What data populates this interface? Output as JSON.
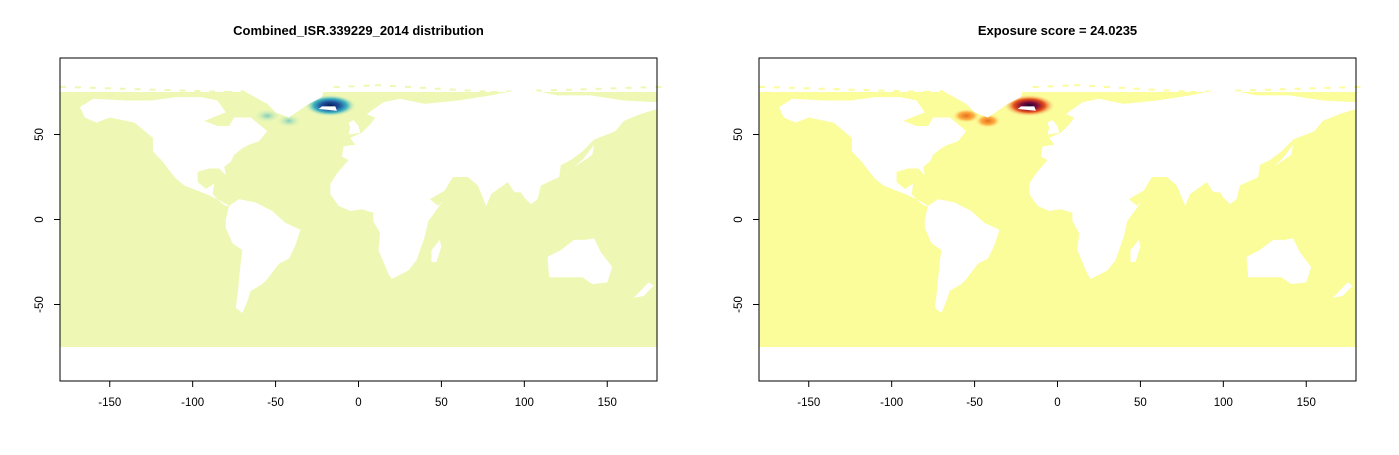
{
  "panels": [
    {
      "title": "Combined_ISR.339229_2014 distribution",
      "palette": "yellow-green-blue",
      "colors": {
        "base": "#eef8b4",
        "low": "#c7e9b4",
        "mid": "#41b6c4",
        "high": "#0c2c84"
      },
      "x_ticks": [
        "-150",
        "-100",
        "-50",
        "0",
        "50",
        "100",
        "150"
      ],
      "y_ticks": [
        "-50",
        "0",
        "50"
      ]
    },
    {
      "title": "Exposure score = 24.0235",
      "palette": "yellow-orange-red-purple",
      "colors": {
        "base": "#fbfc9a",
        "low": "#fec44f",
        "mid": "#e65c1a",
        "high": "#2b0a3d"
      },
      "x_ticks": [
        "-150",
        "-100",
        "-50",
        "0",
        "50",
        "100",
        "150"
      ],
      "y_ticks": [
        "-50",
        "0",
        "50"
      ]
    }
  ],
  "chart_data": [
    {
      "type": "heatmap",
      "title": "Combined_ISR.339229_2014 distribution",
      "xlim": [
        -180,
        180
      ],
      "ylim": [
        -95,
        95
      ],
      "x_ticks": [
        -150,
        -100,
        -50,
        0,
        50,
        100,
        150
      ],
      "y_ticks": [
        -50,
        0,
        50
      ],
      "ocean_extent_lat": [
        -75,
        75
      ],
      "hotspots": [
        {
          "lon": -17,
          "lat": 67,
          "intensity": "high"
        },
        {
          "lon": -55,
          "lat": 61,
          "intensity": "low"
        },
        {
          "lon": -42,
          "lat": 58,
          "intensity": "low"
        }
      ]
    },
    {
      "type": "heatmap",
      "title": "Exposure score = 24.0235",
      "xlim": [
        -180,
        180
      ],
      "ylim": [
        -95,
        95
      ],
      "x_ticks": [
        -150,
        -100,
        -50,
        0,
        50,
        100,
        150
      ],
      "y_ticks": [
        -50,
        0,
        50
      ],
      "ocean_extent_lat": [
        -75,
        75
      ],
      "hotspots": [
        {
          "lon": -17,
          "lat": 67,
          "intensity": "high"
        },
        {
          "lon": -55,
          "lat": 61,
          "intensity": "medium"
        },
        {
          "lon": -42,
          "lat": 58,
          "intensity": "medium"
        }
      ]
    }
  ]
}
